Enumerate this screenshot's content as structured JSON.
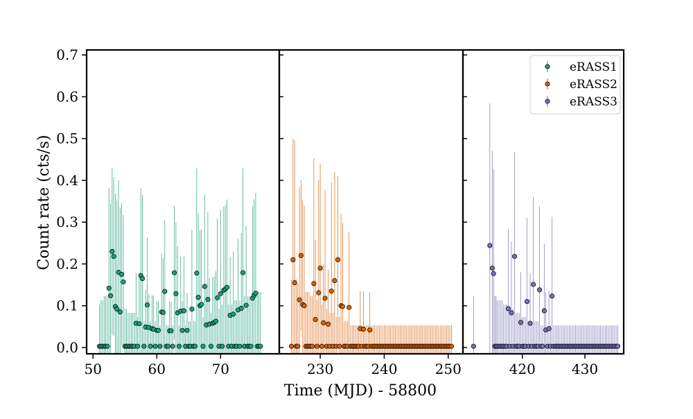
{
  "chart_data": {
    "type": "scatter",
    "xlabel": "Time (MJD) - 58800",
    "ylabel": "Count rate (cts/s)",
    "ylim": [
      -0.015,
      0.712
    ],
    "yticks": [
      "0.0",
      "0.1",
      "0.2",
      "0.3",
      "0.4",
      "0.5",
      "0.6",
      "0.7"
    ],
    "legend": {
      "placement": "top-right",
      "entries": [
        "eRASS1",
        "eRASS2",
        "eRASS3"
      ]
    },
    "panels": [
      {
        "series": "eRASS1",
        "color": "#1b9e77",
        "xlim": [
          49,
          79.2
        ],
        "xticks": [
          50,
          60,
          70
        ],
        "x": [
          51.0,
          51.25,
          51.5,
          51.75,
          52.0,
          52.25,
          52.5,
          52.75,
          53.0,
          53.25,
          53.5,
          53.75,
          54.0,
          54.25,
          54.5,
          54.75,
          55.0,
          55.25,
          55.5,
          55.75,
          56.0,
          56.25,
          56.5,
          56.75,
          57.0,
          57.25,
          57.5,
          57.75,
          58.0,
          58.25,
          58.5,
          58.75,
          59.0,
          59.25,
          59.5,
          59.75,
          60.0,
          60.25,
          60.5,
          60.75,
          61.0,
          61.25,
          61.5,
          61.75,
          62.0,
          62.25,
          62.5,
          62.75,
          63.0,
          63.25,
          63.5,
          63.75,
          64.0,
          64.25,
          64.5,
          64.75,
          65.0,
          65.25,
          65.5,
          65.75,
          66.0,
          66.25,
          66.5,
          66.75,
          67.0,
          67.25,
          67.5,
          67.75,
          68.0,
          68.25,
          68.5,
          68.75,
          69.0,
          69.25,
          69.5,
          69.75,
          70.0,
          70.25,
          70.5,
          70.75,
          71.0,
          71.25,
          71.5,
          71.75,
          72.0,
          72.25,
          72.5,
          72.75,
          73.0,
          73.25,
          73.5,
          73.75,
          74.0,
          74.25,
          74.5,
          74.75,
          75.0,
          75.25,
          75.5,
          75.75,
          76.0,
          76.25
        ],
        "y": [
          0.003,
          0.003,
          0.003,
          0.003,
          0.003,
          0.003,
          0.142,
          0.124,
          0.23,
          0.218,
          0.098,
          0.092,
          0.18,
          0.085,
          0.175,
          0.157,
          0.003,
          0.003,
          0.003,
          0.003,
          0.003,
          0.003,
          0.003,
          0.058,
          0.003,
          0.057,
          0.172,
          0.165,
          0.003,
          0.049,
          0.102,
          0.048,
          0.003,
          0.045,
          0.044,
          0.003,
          0.041,
          0.041,
          0.003,
          0.085,
          0.084,
          0.134,
          0.003,
          0.003,
          0.04,
          0.04,
          0.003,
          0.179,
          0.129,
          0.083,
          0.003,
          0.087,
          0.041,
          0.088,
          0.003,
          0.041,
          0.003,
          0.003,
          0.092,
          0.003,
          0.003,
          0.178,
          0.12,
          0.1,
          0.103,
          0.003,
          0.146,
          0.054,
          0.115,
          0.056,
          0.003,
          0.058,
          0.06,
          0.063,
          0.119,
          0.003,
          0.129,
          0.003,
          0.137,
          0.14,
          0.144,
          0.003,
          0.077,
          0.003,
          0.08,
          0.003,
          0.003,
          0.09,
          0.003,
          0.094,
          0.179,
          0.003,
          0.101,
          0.003,
          0.003,
          0.003,
          0.118,
          0.125,
          0.13,
          0.003,
          0.003,
          0.003
        ],
        "yerr": [
          0.1,
          0.11,
          0.11,
          0.12,
          0.12,
          0.12,
          0.24,
          0.22,
          0.2,
          0.19,
          0.27,
          0.26,
          0.22,
          0.25,
          0.17,
          0.16,
          0.09,
          0.09,
          0.08,
          0.08,
          0.08,
          0.08,
          0.08,
          0.12,
          0.07,
          0.12,
          0.21,
          0.2,
          0.06,
          0.09,
          0.16,
          0.08,
          0.06,
          0.08,
          0.08,
          0.06,
          0.07,
          0.07,
          0.05,
          0.14,
          0.13,
          0.17,
          0.05,
          0.05,
          0.07,
          0.07,
          0.05,
          0.16,
          0.17,
          0.16,
          0.05,
          0.13,
          0.07,
          0.13,
          0.05,
          0.09,
          0.06,
          0.06,
          0.19,
          0.06,
          0.06,
          0.25,
          0.2,
          0.18,
          0.18,
          0.07,
          0.22,
          0.1,
          0.21,
          0.11,
          0.08,
          0.11,
          0.11,
          0.12,
          0.19,
          0.09,
          0.2,
          0.1,
          0.2,
          0.2,
          0.21,
          0.1,
          0.14,
          0.1,
          0.15,
          0.11,
          0.11,
          0.17,
          0.11,
          0.18,
          0.25,
          0.12,
          0.19,
          0.12,
          0.12,
          0.12,
          0.22,
          0.23,
          0.24,
          0.13,
          0.13,
          0.13
        ]
      },
      {
        "series": "eRASS2",
        "color": "#d95f02",
        "xlim": [
          223.6,
          252.3
        ],
        "xticks": [
          230,
          240,
          250
        ],
        "x": [
          225.5,
          225.75,
          226.0,
          226.25,
          226.5,
          226.75,
          227.0,
          227.25,
          227.5,
          227.75,
          228.0,
          228.25,
          228.5,
          228.75,
          229.0,
          229.25,
          229.5,
          229.75,
          230.0,
          230.25,
          230.5,
          230.75,
          231.0,
          231.25,
          231.5,
          231.75,
          232.0,
          232.25,
          232.5,
          232.75,
          233.0,
          233.25,
          233.5,
          233.75,
          234.0,
          234.25,
          234.5,
          234.75,
          235.0,
          235.25,
          235.5,
          235.75,
          236.0,
          236.25,
          236.5,
          236.75,
          237.0,
          237.25,
          237.5,
          237.75,
          238.0,
          238.25,
          238.5,
          238.75,
          239.0,
          239.25,
          239.5,
          239.75,
          240.0,
          240.25,
          240.5,
          240.75,
          241.0,
          241.25,
          241.5,
          241.75,
          242.0,
          242.25,
          242.5,
          242.75,
          243.0,
          243.25,
          243.5,
          243.75,
          244.0,
          244.25,
          244.5,
          244.75,
          245.0,
          245.25,
          245.5,
          245.75,
          246.0,
          246.25,
          246.5,
          246.75,
          247.0,
          247.25,
          247.5,
          247.75,
          248.0,
          248.25,
          248.5,
          248.75,
          249.0,
          249.25,
          249.5,
          249.75,
          250.0,
          250.25,
          250.5
        ],
        "y": [
          0.003,
          0.21,
          0.155,
          0.003,
          0.003,
          0.114,
          0.22,
          0.103,
          0.1,
          0.003,
          0.003,
          0.003,
          0.003,
          0.003,
          0.153,
          0.067,
          0.003,
          0.131,
          0.19,
          0.003,
          0.059,
          0.118,
          0.003,
          0.056,
          0.003,
          0.135,
          0.003,
          0.16,
          0.003,
          0.21,
          0.003,
          0.1,
          0.098,
          0.003,
          0.003,
          0.003,
          0.096,
          0.003,
          0.003,
          0.003,
          0.003,
          0.003,
          0.003,
          0.045,
          0.003,
          0.044,
          0.003,
          0.003,
          0.003,
          0.042,
          0.003,
          0.003,
          0.003,
          0.003,
          0.003,
          0.003,
          0.003,
          0.003,
          0.003,
          0.003,
          0.003,
          0.003,
          0.003,
          0.003,
          0.003,
          0.003,
          0.003,
          0.003,
          0.003,
          0.003,
          0.003,
          0.003,
          0.003,
          0.003,
          0.003,
          0.003,
          0.003,
          0.003,
          0.003,
          0.003,
          0.003,
          0.003,
          0.003,
          0.003,
          0.003,
          0.003,
          0.003,
          0.003,
          0.003,
          0.003,
          0.003,
          0.003,
          0.003,
          0.003,
          0.003,
          0.003,
          0.003,
          0.003,
          0.003,
          0.003,
          0.003
        ],
        "yerr": [
          0.16,
          0.29,
          0.34,
          0.16,
          0.15,
          0.27,
          0.18,
          0.25,
          0.24,
          0.13,
          0.13,
          0.13,
          0.12,
          0.12,
          0.3,
          0.19,
          0.11,
          0.27,
          0.25,
          0.1,
          0.14,
          0.26,
          0.09,
          0.13,
          0.08,
          0.26,
          0.08,
          0.26,
          0.07,
          0.2,
          0.07,
          0.22,
          0.2,
          0.06,
          0.06,
          0.06,
          0.18,
          0.05,
          0.05,
          0.05,
          0.05,
          0.05,
          0.05,
          0.09,
          0.05,
          0.09,
          0.05,
          0.05,
          0.05,
          0.09,
          0.05,
          0.05,
          0.05,
          0.05,
          0.05,
          0.05,
          0.05,
          0.05,
          0.05,
          0.05,
          0.05,
          0.05,
          0.05,
          0.05,
          0.05,
          0.05,
          0.05,
          0.05,
          0.05,
          0.05,
          0.05,
          0.05,
          0.05,
          0.05,
          0.05,
          0.05,
          0.05,
          0.05,
          0.05,
          0.05,
          0.05,
          0.05,
          0.05,
          0.05,
          0.05,
          0.05,
          0.05,
          0.05,
          0.05,
          0.05,
          0.05,
          0.05,
          0.05,
          0.05,
          0.05,
          0.05,
          0.05,
          0.05,
          0.05,
          0.05,
          0.05
        ]
      },
      {
        "series": "eRASS3",
        "color": "#7570b3",
        "xlim": [
          410.5,
          436.2
        ],
        "xticks": [
          420,
          430
        ],
        "x": [
          412.2,
          414.8,
          415.2,
          415.4,
          415.6,
          415.8,
          416.0,
          416.25,
          416.5,
          416.75,
          417.0,
          417.25,
          417.5,
          417.75,
          418.0,
          418.25,
          418.5,
          418.75,
          419.0,
          419.25,
          419.5,
          419.75,
          420.0,
          420.25,
          420.5,
          420.75,
          421.0,
          421.25,
          421.5,
          421.75,
          422.0,
          422.25,
          422.5,
          422.75,
          423.0,
          423.25,
          423.5,
          423.75,
          424.0,
          424.25,
          424.5,
          424.75,
          425.0,
          425.25,
          425.5,
          425.75,
          426.0,
          426.25,
          426.5,
          426.75,
          427.0,
          427.25,
          427.5,
          427.75,
          428.0,
          428.25,
          428.5,
          428.75,
          429.0,
          429.25,
          429.5,
          429.75,
          430.0,
          430.25,
          430.5,
          430.75,
          431.0,
          431.25,
          431.5,
          431.75,
          432.0,
          432.25,
          432.5,
          432.75,
          433.0,
          433.25,
          433.5,
          433.75,
          434.0,
          434.25,
          434.5,
          434.75,
          435.0,
          435.25
        ],
        "y": [
          0.003,
          0.244,
          0.19,
          0.177,
          0.003,
          0.003,
          0.003,
          0.003,
          0.003,
          0.003,
          0.003,
          0.003,
          0.003,
          0.093,
          0.003,
          0.083,
          0.003,
          0.218,
          0.003,
          0.003,
          0.003,
          0.06,
          0.003,
          0.003,
          0.003,
          0.11,
          0.003,
          0.058,
          0.003,
          0.151,
          0.003,
          0.003,
          0.003,
          0.138,
          0.003,
          0.003,
          0.088,
          0.042,
          0.003,
          0.045,
          0.003,
          0.123,
          0.003,
          0.003,
          0.003,
          0.003,
          0.003,
          0.003,
          0.003,
          0.003,
          0.003,
          0.003,
          0.003,
          0.003,
          0.003,
          0.003,
          0.003,
          0.003,
          0.003,
          0.003,
          0.003,
          0.003,
          0.003,
          0.003,
          0.003,
          0.003,
          0.003,
          0.003,
          0.003,
          0.003,
          0.003,
          0.003,
          0.003,
          0.003,
          0.003,
          0.003,
          0.003,
          0.003,
          0.003,
          0.003,
          0.003,
          0.003,
          0.003,
          0.003
        ],
        "yerr": [
          0.12,
          0.34,
          0.28,
          0.25,
          0.12,
          0.12,
          0.11,
          0.11,
          0.11,
          0.11,
          0.1,
          0.1,
          0.1,
          0.19,
          0.09,
          0.17,
          0.09,
          0.25,
          0.08,
          0.08,
          0.08,
          0.12,
          0.07,
          0.07,
          0.07,
          0.2,
          0.06,
          0.12,
          0.06,
          0.21,
          0.06,
          0.06,
          0.06,
          0.2,
          0.05,
          0.05,
          0.16,
          0.09,
          0.05,
          0.09,
          0.05,
          0.19,
          0.05,
          0.05,
          0.05,
          0.05,
          0.05,
          0.05,
          0.05,
          0.05,
          0.05,
          0.05,
          0.05,
          0.05,
          0.05,
          0.05,
          0.05,
          0.05,
          0.05,
          0.05,
          0.05,
          0.05,
          0.05,
          0.05,
          0.05,
          0.05,
          0.05,
          0.05,
          0.05,
          0.05,
          0.05,
          0.05,
          0.05,
          0.05,
          0.05,
          0.05,
          0.05,
          0.05,
          0.05,
          0.05,
          0.05,
          0.05,
          0.05,
          0.05
        ]
      }
    ]
  }
}
